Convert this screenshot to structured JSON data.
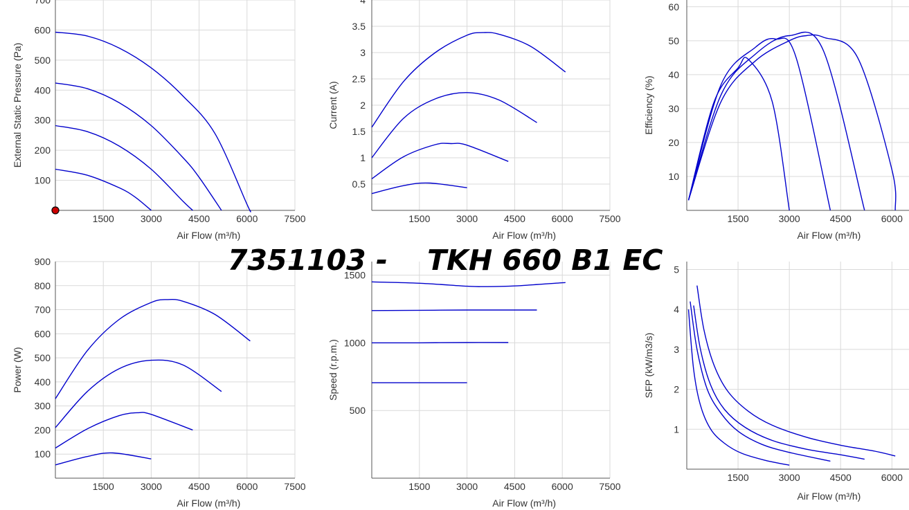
{
  "title": "7351103 -    TKH 660 B1 EC",
  "colors": {
    "curve": "#0000cc",
    "grid": "#d9d9d9",
    "axis": "#555555",
    "marker_fill": "#cc0000"
  },
  "chart_data": [
    {
      "id": "pressure",
      "type": "line",
      "xlabel": "Air Flow (m³/h)",
      "ylabel": "External Static Pressure (Pa)",
      "xlim": [
        0,
        7500
      ],
      "ylim": [
        0,
        700
      ],
      "xticks": [
        "1500",
        "3000",
        "4500",
        "6000",
        "7500"
      ],
      "yticks": [
        "100",
        "200",
        "300",
        "400",
        "500",
        "600",
        "700"
      ],
      "marker": {
        "x": 0,
        "y": 0
      },
      "series": [
        {
          "x": [
            0,
            1000,
            2000,
            3000,
            4000,
            5000,
            6000,
            6100
          ],
          "y": [
            593,
            580,
            540,
            474,
            380,
            255,
            20,
            0
          ]
        },
        {
          "x": [
            0,
            1000,
            2000,
            3000,
            4000,
            4500,
            5200
          ],
          "y": [
            424,
            405,
            358,
            282,
            175,
            110,
            0
          ]
        },
        {
          "x": [
            0,
            1000,
            2000,
            3000,
            4000,
            4300
          ],
          "y": [
            282,
            262,
            214,
            137,
            30,
            0
          ]
        },
        {
          "x": [
            0,
            1000,
            2000,
            2500,
            3000
          ],
          "y": [
            137,
            117,
            75,
            44,
            0
          ]
        }
      ]
    },
    {
      "id": "current",
      "type": "line",
      "xlabel": "Air Flow (m³/h)",
      "ylabel": "Current (A)",
      "xlim": [
        0,
        7500
      ],
      "ylim": [
        0,
        4
      ],
      "xticks": [
        "1500",
        "3000",
        "4500",
        "6000",
        "7500"
      ],
      "yticks": [
        "0.5",
        "1",
        "1.5",
        "2",
        "2.5",
        "3",
        "3.5",
        "4"
      ],
      "series": [
        {
          "x": [
            0,
            1000,
            2000,
            3000,
            3500,
            4000,
            5000,
            6100
          ],
          "y": [
            1.58,
            2.45,
            3.0,
            3.33,
            3.38,
            3.35,
            3.12,
            2.63
          ]
        },
        {
          "x": [
            0,
            1000,
            2000,
            3000,
            4000,
            5200
          ],
          "y": [
            1.0,
            1.75,
            2.12,
            2.24,
            2.1,
            1.67
          ]
        },
        {
          "x": [
            0,
            1000,
            2000,
            2500,
            3000,
            4300
          ],
          "y": [
            0.6,
            1.02,
            1.25,
            1.27,
            1.24,
            0.93
          ]
        },
        {
          "x": [
            0,
            1000,
            1800,
            3000
          ],
          "y": [
            0.32,
            0.47,
            0.52,
            0.43
          ]
        }
      ]
    },
    {
      "id": "efficiency",
      "type": "line",
      "xlabel": "Air Flow (m³/h)",
      "ylabel": "Efficiency (%)",
      "xlim": [
        0,
        6500
      ],
      "ylim": [
        0,
        62
      ],
      "xticks": [
        "1500",
        "3000",
        "4500",
        "6000"
      ],
      "yticks": [
        "10",
        "20",
        "30",
        "40",
        "50",
        "60"
      ],
      "series": [
        {
          "x": [
            50,
            1000,
            2000,
            3000,
            3500,
            4000,
            5000,
            6000,
            6100
          ],
          "y": [
            3,
            32,
            44,
            50,
            51.5,
            51,
            45,
            12,
            0
          ]
        },
        {
          "x": [
            50,
            1000,
            2000,
            3000,
            4000,
            5200
          ],
          "y": [
            3,
            34,
            46,
            51.5,
            47,
            0
          ]
        },
        {
          "x": [
            50,
            1000,
            2000,
            2600,
            3200,
            4200
          ],
          "y": [
            3,
            37,
            48,
            50.5,
            45,
            0
          ]
        },
        {
          "x": [
            50,
            800,
            1500,
            1800,
            2500,
            3000
          ],
          "y": [
            3,
            32,
            42,
            44.5,
            32,
            0
          ]
        }
      ]
    },
    {
      "id": "power",
      "type": "line",
      "xlabel": "Air Flow (m³/h)",
      "ylabel": "Power (W)",
      "xlim": [
        0,
        7500
      ],
      "ylim": [
        0,
        900
      ],
      "xticks": [
        "1500",
        "3000",
        "4500",
        "6000",
        "7500"
      ],
      "yticks": [
        "100",
        "200",
        "300",
        "400",
        "500",
        "600",
        "700",
        "800",
        "900"
      ],
      "series": [
        {
          "x": [
            0,
            1000,
            2000,
            3000,
            3500,
            4000,
            5000,
            6100
          ],
          "y": [
            330,
            530,
            660,
            730,
            742,
            735,
            680,
            570
          ]
        },
        {
          "x": [
            0,
            1000,
            2000,
            3000,
            4000,
            5200
          ],
          "y": [
            210,
            360,
            455,
            490,
            470,
            360
          ]
        },
        {
          "x": [
            0,
            1000,
            2000,
            2600,
            3000,
            4300
          ],
          "y": [
            125,
            205,
            260,
            272,
            265,
            200
          ]
        },
        {
          "x": [
            0,
            1000,
            1800,
            3000
          ],
          "y": [
            55,
            90,
            105,
            80
          ]
        }
      ]
    },
    {
      "id": "speed",
      "type": "line",
      "xlabel": "Air Flow (m³/h)",
      "ylabel": "Speed (r.p.m.)",
      "xlim": [
        0,
        7500
      ],
      "ylim": [
        0,
        1600
      ],
      "xticks": [
        "1500",
        "3000",
        "4500",
        "6000",
        "7500"
      ],
      "yticks": [
        "500",
        "1000",
        "1500"
      ],
      "series": [
        {
          "x": [
            0,
            1500,
            3000,
            3500,
            4500,
            6100
          ],
          "y": [
            1450,
            1440,
            1418,
            1415,
            1420,
            1445
          ]
        },
        {
          "x": [
            0,
            1500,
            3000,
            5200
          ],
          "y": [
            1238,
            1240,
            1242,
            1242
          ]
        },
        {
          "x": [
            0,
            1500,
            3000,
            4300
          ],
          "y": [
            1000,
            1000,
            1002,
            1002
          ]
        },
        {
          "x": [
            0,
            1500,
            3000
          ],
          "y": [
            705,
            705,
            705
          ]
        }
      ]
    },
    {
      "id": "sfp",
      "type": "line",
      "xlabel": "Air Flow (m³/h)",
      "ylabel": "SFP (kW/m3/s)",
      "xlim": [
        0,
        6500
      ],
      "ylim": [
        0,
        5.2
      ],
      "xticks": [
        "1500",
        "3000",
        "4500",
        "6000"
      ],
      "yticks": [
        "1",
        "2",
        "3",
        "4",
        "5"
      ],
      "series": [
        {
          "x": [
            300,
            500,
            800,
            1200,
            1800,
            2500,
            3500,
            4500,
            5500,
            6100
          ],
          "y": [
            4.6,
            3.5,
            2.6,
            1.95,
            1.45,
            1.1,
            0.8,
            0.6,
            0.45,
            0.33
          ]
        },
        {
          "x": [
            200,
            400,
            700,
            1100,
            1700,
            2500,
            3500,
            4500,
            5200
          ],
          "y": [
            4.1,
            3.0,
            2.1,
            1.5,
            1.05,
            0.72,
            0.5,
            0.36,
            0.25
          ]
        },
        {
          "x": [
            100,
            300,
            600,
            1000,
            1500,
            2200,
            3000,
            4200
          ],
          "y": [
            4.2,
            3.0,
            2.0,
            1.4,
            0.95,
            0.62,
            0.42,
            0.2
          ]
        },
        {
          "x": [
            50,
            200,
            400,
            700,
            1100,
            1600,
            2300,
            3000
          ],
          "y": [
            4.0,
            2.5,
            1.6,
            1.0,
            0.65,
            0.4,
            0.22,
            0.1
          ]
        }
      ]
    }
  ]
}
